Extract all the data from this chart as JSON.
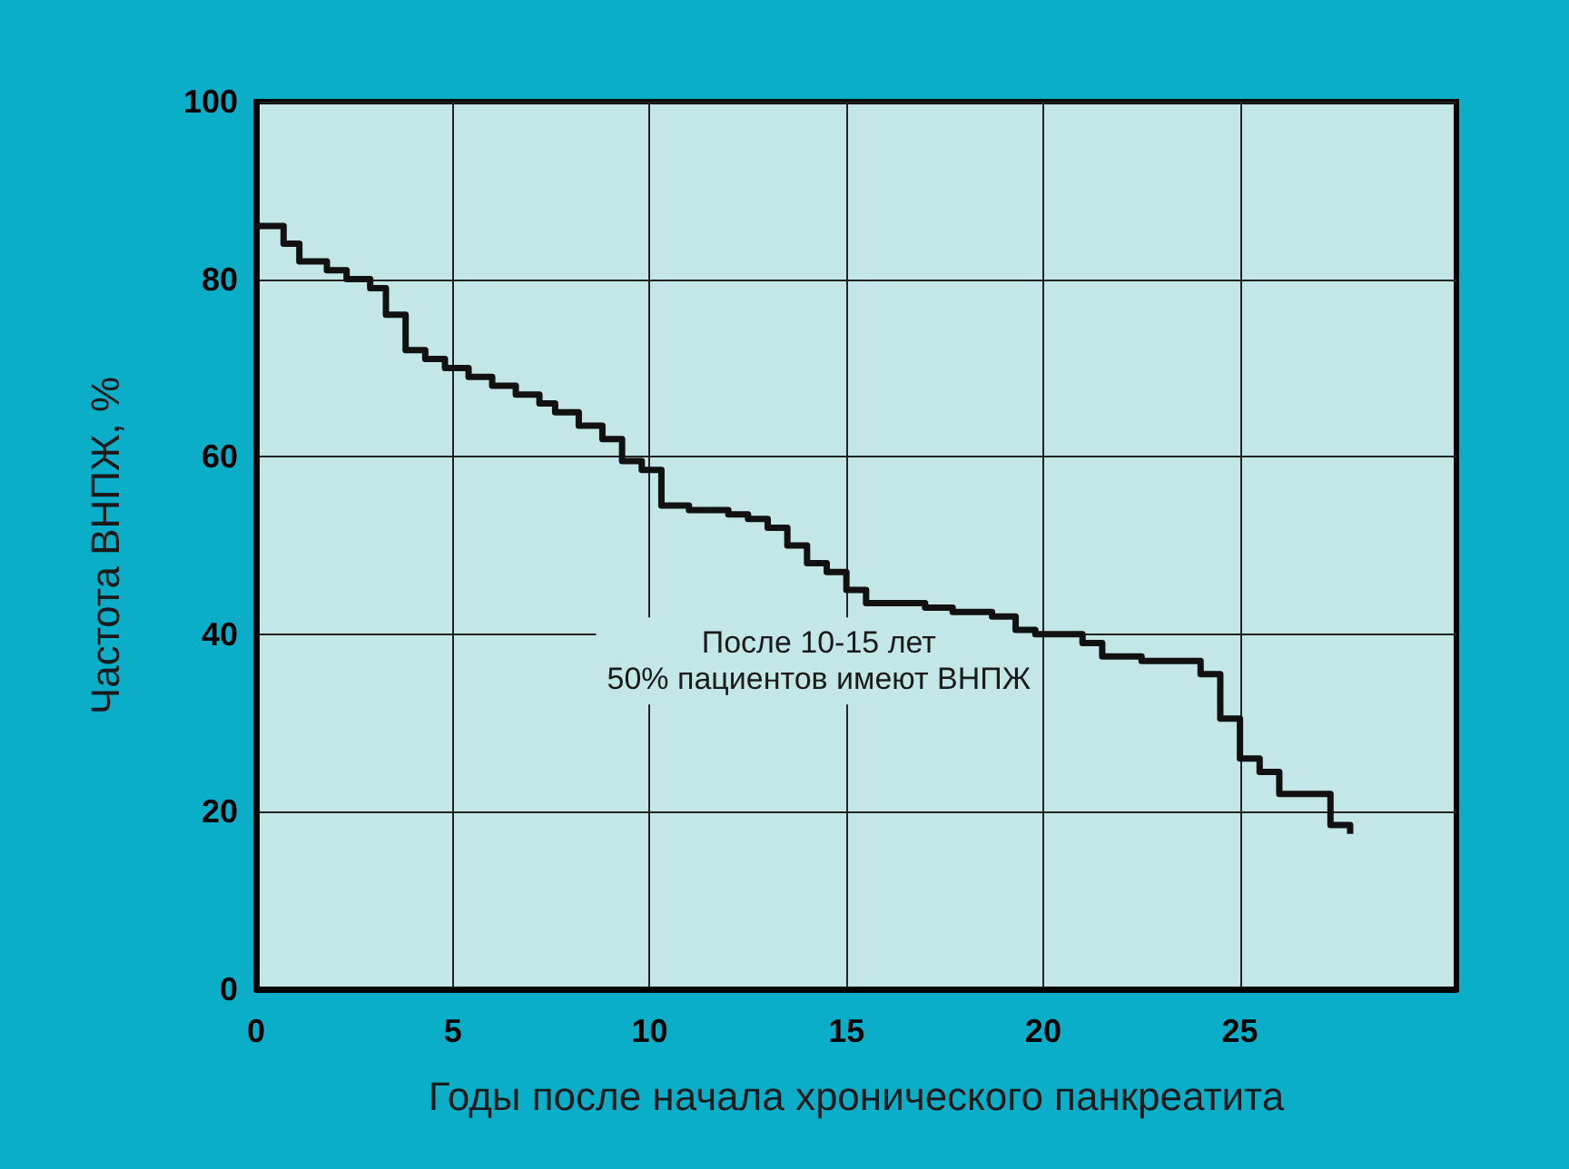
{
  "chart_data": {
    "type": "step",
    "xlabel": "Годы после начала хронического панкреатита",
    "ylabel": "Частота ВНПЖ, %",
    "annotations": [
      "После 10-15 лет\n50% пациентов имеют ВНПЖ"
    ],
    "x": [
      0,
      0.7,
      1.1,
      1.8,
      2.3,
      2.9,
      3.3,
      3.8,
      4.3,
      4.8,
      5.4,
      6,
      6.6,
      7.2,
      7.6,
      8.2,
      8.8,
      9.3,
      9.8,
      10.3,
      11,
      12,
      12.5,
      13,
      13.5,
      14,
      14.5,
      15,
      15.5,
      16.5,
      17,
      17.7,
      18.7,
      19.3,
      19.8,
      21,
      21.5,
      22.5,
      24,
      24.5,
      25,
      25.5,
      26,
      27.3,
      27.8
    ],
    "series": [
      {
        "color": "#111111",
        "values": [
          86,
          84,
          82,
          81,
          80,
          79,
          76,
          72,
          71,
          70,
          69,
          68,
          67,
          66,
          65,
          63.5,
          62,
          59.5,
          58.5,
          54.5,
          54,
          53.5,
          53,
          52,
          50,
          48,
          47,
          45,
          43.5,
          43.5,
          43,
          42.5,
          42,
          40.5,
          40,
          39,
          37.5,
          37,
          35.5,
          30.5,
          26,
          24.5,
          22,
          18.5,
          17.5
        ]
      }
    ],
    "xlim": [
      0,
      30.5
    ],
    "xticks": [
      0,
      5,
      10,
      15,
      20,
      25
    ],
    "ylim": [
      0,
      100
    ],
    "yticks": [
      0,
      20,
      40,
      60,
      80,
      100
    ],
    "grid": true,
    "marker": "none",
    "line_style": "solid"
  }
}
